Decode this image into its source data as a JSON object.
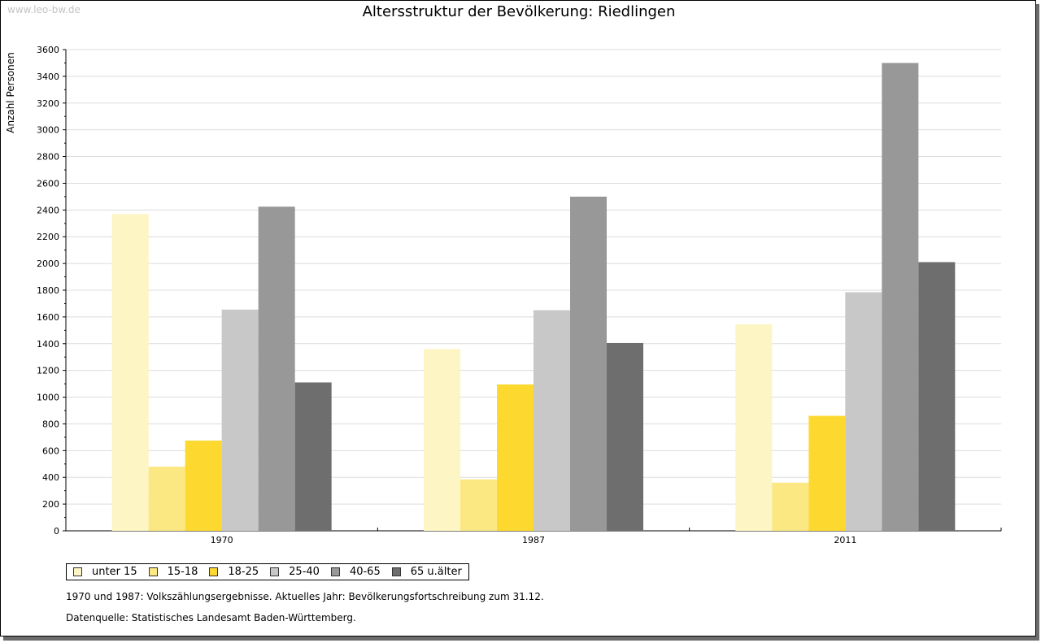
{
  "watermark": "www.leo-bw.de",
  "notes": {
    "line1": "1970 und 1987: Volkszählungsergebnisse. Aktuelles Jahr: Bevölkerungsfortschreibung zum 31.12.",
    "line2": "Datenquelle: Statistisches Landesamt Baden-Württemberg."
  },
  "chart_data": {
    "type": "bar",
    "title": "Altersstruktur der Bevölkerung: Riedlingen",
    "xlabel": "",
    "ylabel": "Anzahl Personen",
    "ylim": [
      0,
      3600
    ],
    "yticks": [
      0,
      200,
      400,
      600,
      800,
      1000,
      1200,
      1400,
      1600,
      1800,
      2000,
      2200,
      2400,
      2600,
      2800,
      3000,
      3200,
      3400,
      3600
    ],
    "grid": true,
    "legend_position": "bottom-left",
    "categories": [
      "1970",
      "1987",
      "2011"
    ],
    "series": [
      {
        "name": "unter 15",
        "color": "#fdf5c4",
        "values": [
          2370,
          1360,
          1545
        ]
      },
      {
        "name": "15-18",
        "color": "#fce882",
        "values": [
          480,
          385,
          360
        ]
      },
      {
        "name": "18-25",
        "color": "#fdd92f",
        "values": [
          675,
          1095,
          860
        ]
      },
      {
        "name": "25-40",
        "color": "#c8c8c8",
        "values": [
          1655,
          1650,
          1785
        ]
      },
      {
        "name": "40-65",
        "color": "#989898",
        "values": [
          2425,
          2500,
          3500
        ]
      },
      {
        "name": "65 u.älter",
        "color": "#6e6e6e",
        "values": [
          1110,
          1405,
          2010
        ]
      }
    ]
  }
}
